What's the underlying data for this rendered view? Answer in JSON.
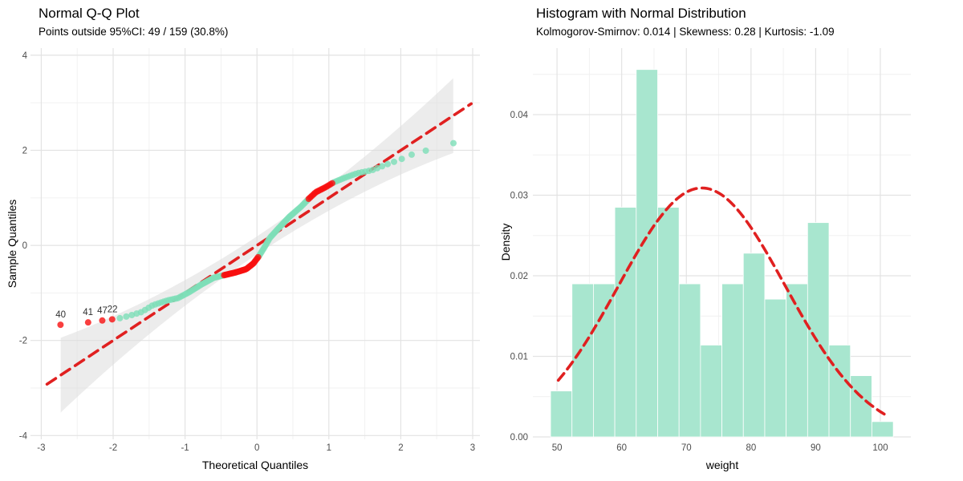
{
  "figure": {
    "background": "#ffffff"
  },
  "chart_data": [
    {
      "type": "scatter",
      "name": "qq-plot",
      "title": "Normal Q-Q Plot",
      "subtitle": "Points outside 95%CI: 49 / 159 (30.8%)",
      "xlabel": "Theoretical Quantiles",
      "ylabel": "Sample Quantiles",
      "x_ticks": [
        -3,
        -2,
        -1,
        0,
        1,
        2,
        3
      ],
      "x_minor": [
        -2.5,
        -1.5,
        -0.5,
        0.5,
        1.5,
        2.5
      ],
      "y_ticks": [
        -4,
        -2,
        0,
        2,
        4
      ],
      "y_minor": [
        -3,
        -1,
        1,
        3
      ],
      "xlim": [
        -3.15,
        3.3
      ],
      "ylim": [
        -4.1,
        4.15
      ],
      "n_points": 159,
      "points_outside_ci": 49,
      "pct_outside_ci": "30.8%",
      "point_radius": 4,
      "reference_line": {
        "slope": 1,
        "intercept": 0,
        "x_start": -2.92,
        "x_end": 2.98,
        "style": "dashed",
        "color": "#e02020",
        "width": 3.6,
        "dash": "13 8"
      },
      "ci_band": {
        "level": "95%",
        "x_start": -2.73,
        "x_end": 2.73,
        "half_width_base": 0.19,
        "half_width_quad": 0.08,
        "color": "#dcdcdc",
        "opacity": 0.55
      },
      "empirical_curve": [
        [
          -2.73,
          -1.67
        ],
        [
          -2.35,
          -1.62
        ],
        [
          -2.15,
          -1.58
        ],
        [
          -2.01,
          -1.555
        ],
        [
          -1.9,
          -1.53
        ],
        [
          -1.75,
          -1.47
        ],
        [
          -1.6,
          -1.4
        ],
        [
          -1.45,
          -1.26
        ],
        [
          -1.25,
          -1.16
        ],
        [
          -1.1,
          -1.11
        ],
        [
          -0.95,
          -0.99
        ],
        [
          -0.77,
          -0.82
        ],
        [
          -0.6,
          -0.68
        ],
        [
          -0.48,
          -0.635
        ],
        [
          -0.3,
          -0.57
        ],
        [
          -0.15,
          -0.5
        ],
        [
          -0.05,
          -0.38
        ],
        [
          0.03,
          -0.22
        ],
        [
          0.1,
          -0.05
        ],
        [
          0.18,
          0.16
        ],
        [
          0.3,
          0.36
        ],
        [
          0.45,
          0.6
        ],
        [
          0.61,
          0.81
        ],
        [
          0.72,
          0.98
        ],
        [
          0.82,
          1.12
        ],
        [
          0.95,
          1.22
        ],
        [
          1.06,
          1.32
        ],
        [
          1.2,
          1.41
        ],
        [
          1.4,
          1.52
        ],
        [
          1.6,
          1.58
        ],
        [
          1.8,
          1.7
        ],
        [
          2.0,
          1.81
        ],
        [
          2.2,
          1.94
        ],
        [
          2.4,
          2.01
        ],
        [
          2.56,
          2.06
        ],
        [
          2.73,
          2.15
        ]
      ],
      "outside_ranges": [
        [
          -2.8,
          -1.95
        ],
        [
          -0.46,
          0.02
        ],
        [
          0.7,
          1.05
        ]
      ],
      "labeled_points": [
        {
          "label": "40",
          "x": -2.73,
          "y": -1.67
        },
        {
          "label": "41",
          "x": -2.35,
          "y": -1.62
        },
        {
          "label": "47",
          "x": -2.15,
          "y": -1.58
        },
        {
          "label": "22",
          "x": -2.01,
          "y": -1.555
        }
      ],
      "colors": {
        "inside_point": "#7ddeb8",
        "outside_point": "#f80f0f",
        "label_text": "#303030",
        "grid_major": "#e3e3e3",
        "grid_minor": "#f0f0f0",
        "tick_text": "#4d4d4d"
      }
    },
    {
      "type": "bar",
      "name": "histogram",
      "title": "Histogram with Normal Distribution",
      "subtitle": "Kolmogorov-Smirnov: 0.014 | Skewness: 0.28 | Kurtosis: -1.09",
      "stats": {
        "kolmogorov_smirnov": 0.014,
        "skewness": 0.28,
        "kurtosis": -1.09
      },
      "xlabel": "weight",
      "ylabel": "Density",
      "x_ticks": [
        50,
        60,
        70,
        80,
        90,
        100
      ],
      "x_minor": [
        55,
        65,
        75,
        85,
        95
      ],
      "y_tick_labels": [
        "0.00",
        "0.01",
        "0.02",
        "0.03",
        "0.04"
      ],
      "y_ticks": [
        0,
        0.01,
        0.02,
        0.03,
        0.04
      ],
      "y_minor": [
        0.005,
        0.015,
        0.025,
        0.035,
        0.045
      ],
      "xlim": [
        46.27,
        104.73
      ],
      "ylim": [
        0,
        0.04826
      ],
      "bin_start": 49,
      "bin_width": 3.3125,
      "counts": [
        3,
        10,
        10,
        15,
        24,
        15,
        10,
        6,
        10,
        12,
        9,
        10,
        14,
        6,
        4,
        1
      ],
      "densities": [
        0.0057,
        0.019,
        0.019,
        0.0285,
        0.0456,
        0.0285,
        0.019,
        0.0114,
        0.019,
        0.0228,
        0.0171,
        0.019,
        0.0266,
        0.0114,
        0.0076,
        0.0019
      ],
      "normal_curve": {
        "mean": 72.4,
        "sd": 12.9,
        "peak_density": 0.0309,
        "x_start": 50.2,
        "x_end": 100.6,
        "style": "dashed",
        "color": "#e02020",
        "width": 3.6,
        "dash": "11 7"
      },
      "colors": {
        "bar_fill": "#a8e6cf",
        "bar_border": "#ffffff",
        "grid_major": "#e3e3e3",
        "grid_minor": "#f0f0f0",
        "tick_text": "#4d4d4d"
      }
    }
  ]
}
